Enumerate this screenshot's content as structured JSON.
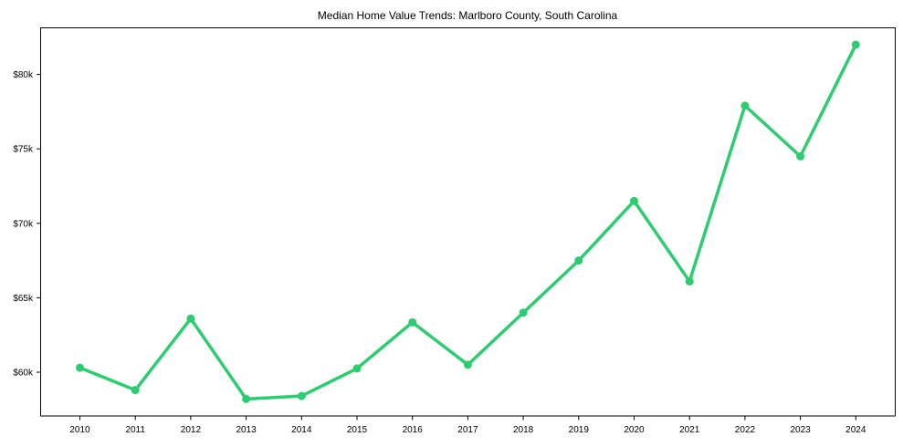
{
  "chart_data": {
    "type": "line",
    "title": "Median Home Value Trends: Marlboro County, South Carolina",
    "xlabel": "",
    "ylabel": "",
    "categories": [
      "2010",
      "2011",
      "2012",
      "2013",
      "2014",
      "2015",
      "2016",
      "2017",
      "2018",
      "2019",
      "2020",
      "2021",
      "2022",
      "2023",
      "2024"
    ],
    "series": [
      {
        "name": "Median Home Value",
        "color": "#2ecc71",
        "values": [
          60300,
          58800,
          63600,
          58200,
          58400,
          60250,
          63350,
          60500,
          64000,
          67500,
          71500,
          66100,
          77900,
          74500,
          82000
        ]
      }
    ],
    "yticks": [
      60000,
      65000,
      70000,
      75000,
      80000
    ],
    "ytick_labels": [
      "$60k",
      "$65k",
      "$70k",
      "$75k",
      "$80k"
    ],
    "ylim": [
      57400,
      83200
    ],
    "grid": false,
    "legend": null
  }
}
